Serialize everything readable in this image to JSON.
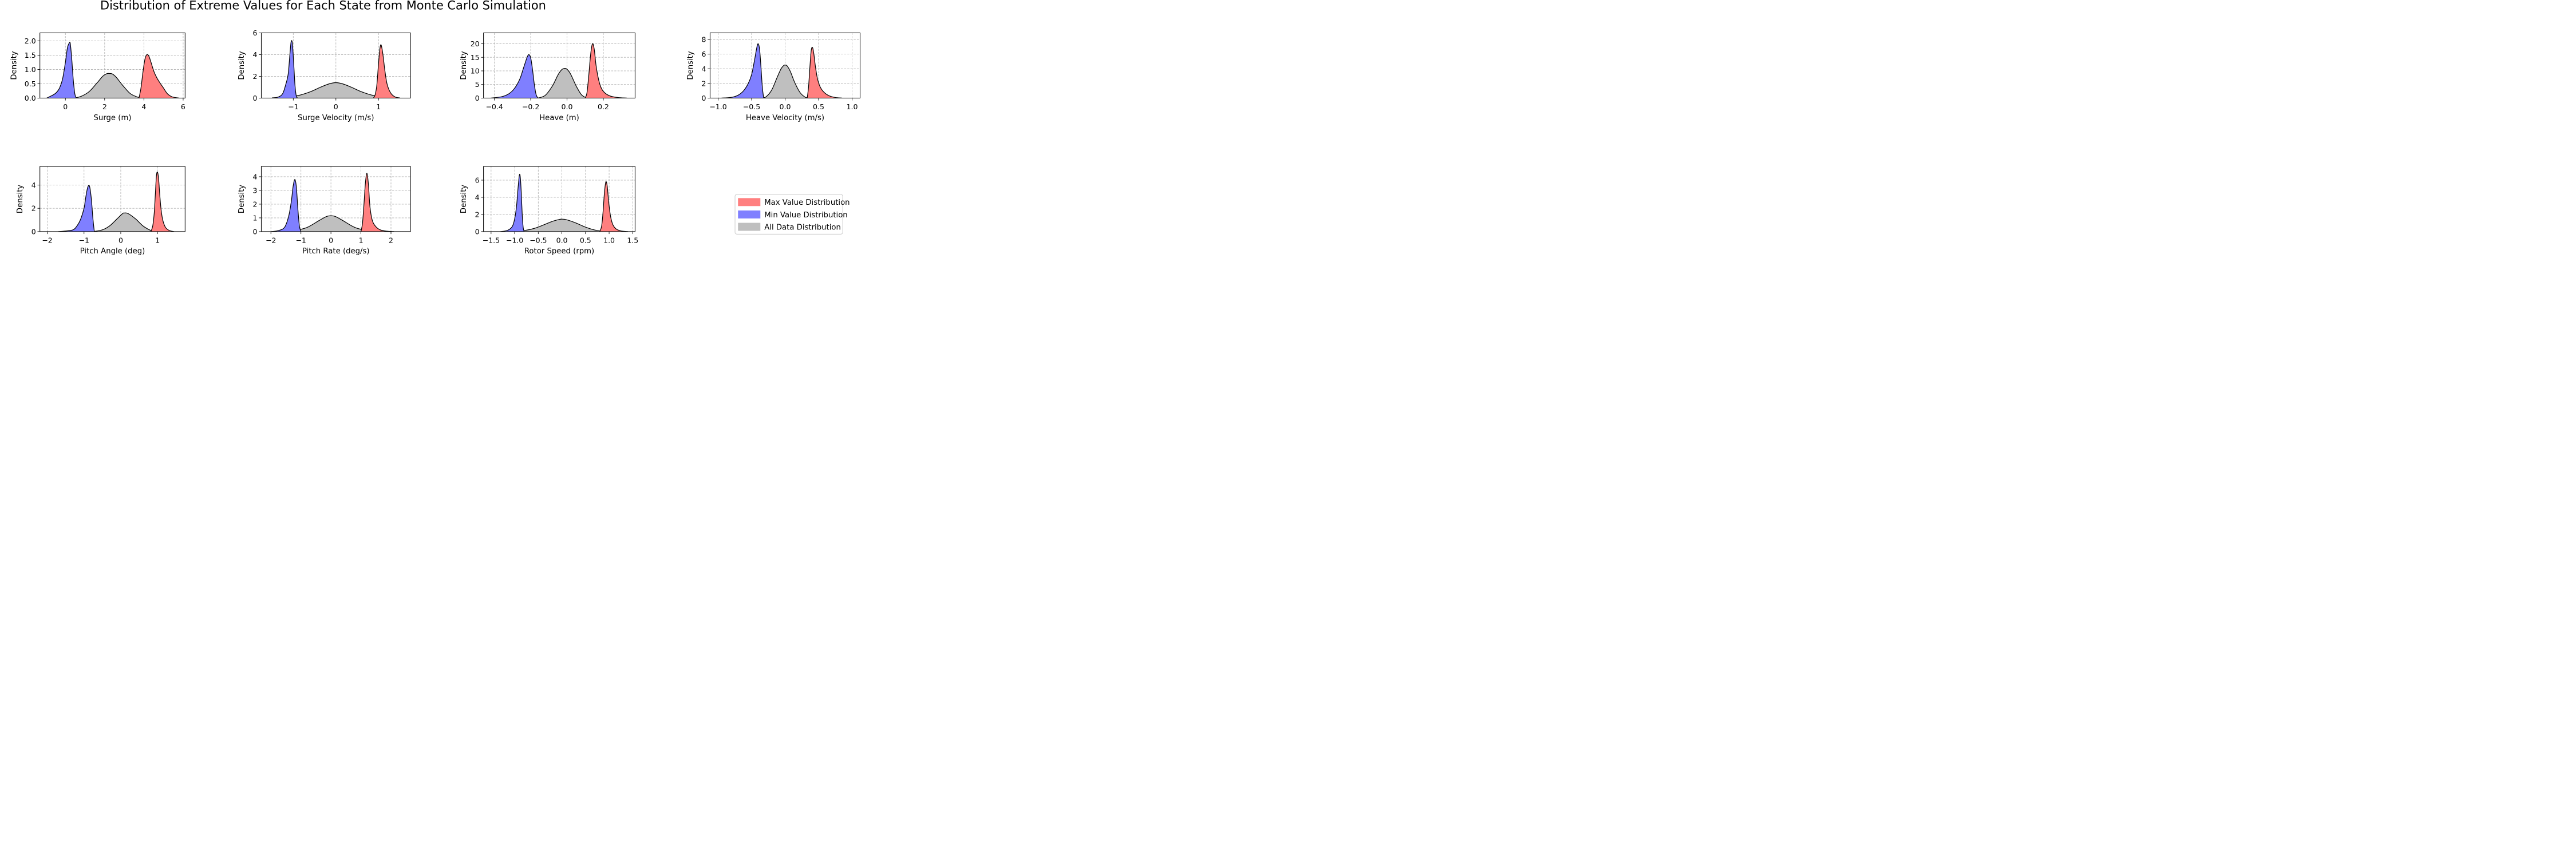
{
  "chart_data": {
    "title": "Distribution of Extreme Values for Each State from Monte Carlo Simulation",
    "legend": {
      "placement": "center-right",
      "entries": [
        {
          "label": "Max Value Distribution",
          "color": "#ff7f7f"
        },
        {
          "label": "Min Value Distribution",
          "color": "#7f7fff"
        },
        {
          "label": "All Data Distribution",
          "color": "#bfbfbf"
        }
      ]
    },
    "colors": {
      "max": "#ff7f7f",
      "min": "#7f7fff",
      "all": "#bfbfbf",
      "kde": "#000000"
    },
    "grid": true,
    "panels": [
      {
        "type": "area",
        "xlabel": "Surge (m)",
        "ylabel": "Density",
        "xlim": [
          -1.3,
          6.1
        ],
        "ylim": [
          0,
          2.28
        ],
        "xticks": [
          0,
          2,
          4,
          6
        ],
        "yticks": [
          0,
          0.5,
          1,
          1.5,
          2
        ],
        "xtick_labels": [
          "0",
          "2",
          "4",
          "6"
        ],
        "ytick_labels": [
          "0.0",
          "0.5",
          "1.0",
          "1.5",
          "2.0"
        ],
        "min_dist": {
          "x": [
            -0.95,
            -0.8,
            -0.6,
            -0.45,
            -0.3,
            -0.15,
            0.0,
            0.1,
            0.2,
            0.25,
            0.32,
            0.4,
            0.48,
            0.55
          ],
          "y": [
            0.0,
            0.05,
            0.12,
            0.2,
            0.35,
            0.65,
            1.25,
            1.75,
            1.93,
            1.9,
            1.4,
            0.65,
            0.15,
            0.0
          ]
        },
        "all_dist": {
          "x": [
            0.45,
            0.8,
            1.2,
            1.6,
            1.9,
            2.1,
            2.25,
            2.4,
            2.6,
            2.9,
            3.3,
            3.7,
            4.0
          ],
          "y": [
            0.0,
            0.06,
            0.22,
            0.52,
            0.76,
            0.85,
            0.86,
            0.84,
            0.72,
            0.46,
            0.16,
            0.03,
            0.0
          ]
        },
        "max_dist": {
          "x": [
            3.75,
            3.85,
            3.95,
            4.05,
            4.15,
            4.25,
            4.35,
            4.5,
            4.65,
            4.8,
            5.0,
            5.2,
            5.45,
            5.8
          ],
          "y": [
            0.0,
            0.35,
            0.9,
            1.35,
            1.52,
            1.47,
            1.28,
            0.95,
            0.72,
            0.55,
            0.35,
            0.15,
            0.04,
            0.0
          ]
        }
      },
      {
        "type": "area",
        "xlabel": "Surge Velocity (m/s)",
        "ylabel": "Density",
        "xlim": [
          -1.75,
          1.75
        ],
        "ylim": [
          0,
          6.0
        ],
        "xticks": [
          -1,
          0,
          1
        ],
        "yticks": [
          0,
          2,
          4,
          6
        ],
        "xtick_labels": [
          "−1",
          "0",
          "1"
        ],
        "ytick_labels": [
          "0",
          "2",
          "4",
          "6"
        ],
        "min_dist": {
          "x": [
            -1.5,
            -1.35,
            -1.25,
            -1.18,
            -1.12,
            -1.08,
            -1.05,
            -1.02,
            -0.99,
            -0.96,
            -0.93,
            -0.9
          ],
          "y": [
            0.0,
            0.1,
            0.4,
            1.2,
            2.2,
            4.0,
            5.2,
            5.0,
            3.2,
            1.2,
            0.2,
            0.0
          ]
        },
        "all_dist": {
          "x": [
            -1.5,
            -1.2,
            -0.9,
            -0.6,
            -0.35,
            -0.15,
            0.0,
            0.15,
            0.35,
            0.6,
            0.9,
            1.2,
            1.5
          ],
          "y": [
            0.02,
            0.08,
            0.22,
            0.58,
            1.02,
            1.32,
            1.42,
            1.32,
            1.02,
            0.58,
            0.22,
            0.08,
            0.02
          ]
        },
        "max_dist": {
          "x": [
            0.88,
            0.92,
            0.96,
            1.0,
            1.03,
            1.06,
            1.1,
            1.15,
            1.2,
            1.28,
            1.38,
            1.5
          ],
          "y": [
            0.0,
            0.3,
            1.2,
            3.2,
            4.5,
            4.9,
            4.1,
            2.5,
            1.3,
            0.5,
            0.12,
            0.0
          ]
        }
      },
      {
        "type": "area",
        "xlabel": "Heave (m)",
        "ylabel": "Density",
        "xlim": [
          -0.46,
          0.375
        ],
        "ylim": [
          0,
          24
        ],
        "xticks": [
          -0.4,
          -0.2,
          0.0,
          0.2
        ],
        "yticks": [
          0,
          5,
          10,
          15,
          20
        ],
        "xtick_labels": [
          "−0.4",
          "−0.2",
          "0.0",
          "0.2"
        ],
        "ytick_labels": [
          "0",
          "5",
          "10",
          "15",
          "20"
        ],
        "min_dist": {
          "x": [
            -0.42,
            -0.36,
            -0.32,
            -0.29,
            -0.26,
            -0.24,
            -0.22,
            -0.21,
            -0.2,
            -0.19,
            -0.18,
            -0.17,
            -0.16
          ],
          "y": [
            0.0,
            0.5,
            1.6,
            3.5,
            7.0,
            11.0,
            15.0,
            16.0,
            14.8,
            10.5,
            5.0,
            1.2,
            0.0
          ]
        },
        "all_dist": {
          "x": [
            -0.16,
            -0.12,
            -0.08,
            -0.05,
            -0.03,
            -0.015,
            0.0,
            0.02,
            0.05,
            0.08,
            0.11
          ],
          "y": [
            0.0,
            1.0,
            4.5,
            8.5,
            10.4,
            10.9,
            10.6,
            8.8,
            4.5,
            1.2,
            0.0
          ]
        },
        "max_dist": {
          "x": [
            0.1,
            0.11,
            0.12,
            0.13,
            0.14,
            0.15,
            0.16,
            0.175,
            0.19,
            0.21,
            0.24,
            0.28,
            0.33
          ],
          "y": [
            0.0,
            2.0,
            8.5,
            16.0,
            20.0,
            18.0,
            12.0,
            6.5,
            3.5,
            1.8,
            0.7,
            0.2,
            0.0
          ]
        }
      },
      {
        "type": "area",
        "xlabel": "Heave Velocity (m/s)",
        "ylabel": "Density",
        "xlim": [
          -1.12,
          1.12
        ],
        "ylim": [
          0,
          8.9
        ],
        "xticks": [
          -1.0,
          -0.5,
          0.0,
          0.5,
          1.0
        ],
        "yticks": [
          0,
          2,
          4,
          6,
          8
        ],
        "xtick_labels": [
          "−1.0",
          "−0.5",
          "0.0",
          "0.5",
          "1.0"
        ],
        "ytick_labels": [
          "0",
          "2",
          "4",
          "6",
          "8"
        ],
        "min_dist": {
          "x": [
            -0.95,
            -0.8,
            -0.7,
            -0.62,
            -0.55,
            -0.5,
            -0.46,
            -0.42,
            -0.4,
            -0.38,
            -0.36,
            -0.34,
            -0.32
          ],
          "y": [
            0.0,
            0.1,
            0.4,
            1.0,
            2.0,
            3.2,
            5.0,
            7.0,
            7.4,
            6.6,
            4.2,
            1.5,
            0.0
          ]
        },
        "all_dist": {
          "x": [
            -0.34,
            -0.28,
            -0.2,
            -0.12,
            -0.06,
            -0.02,
            0.0,
            0.03,
            0.08,
            0.14,
            0.22,
            0.3,
            0.36
          ],
          "y": [
            0.0,
            0.2,
            1.1,
            2.8,
            4.0,
            4.45,
            4.5,
            4.4,
            3.6,
            2.2,
            0.8,
            0.12,
            0.0
          ]
        },
        "max_dist": {
          "x": [
            0.33,
            0.35,
            0.37,
            0.39,
            0.41,
            0.43,
            0.45,
            0.48,
            0.52,
            0.58,
            0.66,
            0.75,
            0.85
          ],
          "y": [
            0.0,
            1.5,
            4.2,
            6.5,
            6.9,
            6.0,
            4.5,
            2.8,
            1.6,
            0.8,
            0.3,
            0.08,
            0.0
          ]
        }
      },
      {
        "type": "area",
        "xlabel": "Pitch Angle (deg)",
        "ylabel": "Density",
        "xlim": [
          -2.2,
          1.75
        ],
        "ylim": [
          0,
          5.6
        ],
        "xticks": [
          -2,
          -1,
          0,
          1
        ],
        "yticks": [
          0,
          2,
          4
        ],
        "xtick_labels": [
          "−2",
          "−1",
          "0",
          "1"
        ],
        "ytick_labels": [
          "0",
          "2",
          "4"
        ],
        "min_dist": {
          "x": [
            -1.7,
            -1.5,
            -1.3,
            -1.2,
            -1.1,
            -1.0,
            -0.95,
            -0.9,
            -0.85,
            -0.8,
            -0.76,
            -0.72
          ],
          "y": [
            0.0,
            0.05,
            0.15,
            0.45,
            1.0,
            2.0,
            3.0,
            3.8,
            3.9,
            2.8,
            1.2,
            0.0
          ]
        },
        "all_dist": {
          "x": [
            -0.75,
            -0.5,
            -0.3,
            -0.1,
            0.05,
            0.1,
            0.2,
            0.4,
            0.6,
            0.8,
            0.95
          ],
          "y": [
            0.0,
            0.15,
            0.5,
            1.1,
            1.55,
            1.6,
            1.55,
            1.1,
            0.5,
            0.12,
            0.0
          ]
        },
        "max_dist": {
          "x": [
            0.82,
            0.87,
            0.91,
            0.94,
            0.97,
            1.0,
            1.03,
            1.06,
            1.1,
            1.15,
            1.22,
            1.32,
            1.45
          ],
          "y": [
            0.0,
            0.5,
            1.6,
            3.2,
            4.8,
            5.1,
            4.5,
            3.2,
            1.8,
            0.9,
            0.35,
            0.1,
            0.0
          ]
        }
      },
      {
        "type": "area",
        "xlabel": "Pitch Rate (deg/s)",
        "ylabel": "Density",
        "xlim": [
          -2.32,
          2.65
        ],
        "ylim": [
          0,
          4.75
        ],
        "xticks": [
          -2,
          -1,
          0,
          1,
          2
        ],
        "yticks": [
          0,
          1,
          2,
          3,
          4
        ],
        "xtick_labels": [
          "−2",
          "−1",
          "0",
          "1",
          "2"
        ],
        "ytick_labels": [
          "0",
          "1",
          "2",
          "3",
          "4"
        ],
        "min_dist": {
          "x": [
            -2.0,
            -1.8,
            -1.6,
            -1.5,
            -1.4,
            -1.32,
            -1.26,
            -1.2,
            -1.15,
            -1.1,
            -1.05,
            -1.0
          ],
          "y": [
            0.0,
            0.05,
            0.2,
            0.5,
            1.2,
            2.2,
            3.3,
            3.8,
            3.2,
            1.6,
            0.4,
            0.0
          ]
        },
        "all_dist": {
          "x": [
            -1.6,
            -1.2,
            -0.8,
            -0.4,
            -0.15,
            0.0,
            0.15,
            0.4,
            0.8,
            1.2,
            1.6
          ],
          "y": [
            0.0,
            0.08,
            0.3,
            0.8,
            1.1,
            1.15,
            1.1,
            0.8,
            0.3,
            0.08,
            0.0
          ]
        },
        "max_dist": {
          "x": [
            1.0,
            1.05,
            1.1,
            1.15,
            1.2,
            1.25,
            1.3,
            1.38,
            1.5,
            1.65,
            1.85,
            2.1
          ],
          "y": [
            0.0,
            0.6,
            2.0,
            3.6,
            4.25,
            3.4,
            1.8,
            0.8,
            0.35,
            0.12,
            0.03,
            0.0
          ]
        }
      },
      {
        "type": "area",
        "xlabel": "Rotor Speed (rpm)",
        "ylabel": "Density",
        "xlim": [
          -1.66,
          1.55
        ],
        "ylim": [
          0,
          7.6
        ],
        "xticks": [
          -1.5,
          -1.0,
          -0.5,
          0.0,
          0.5,
          1.0,
          1.5
        ],
        "yticks": [
          0,
          2,
          4,
          6
        ],
        "xtick_labels": [
          "−1.5",
          "−1.0",
          "−0.5",
          "0.0",
          "0.5",
          "1.0",
          "1.5"
        ],
        "ytick_labels": [
          "0",
          "2",
          "4",
          "6"
        ],
        "min_dist": {
          "x": [
            -1.3,
            -1.15,
            -1.05,
            -1.0,
            -0.96,
            -0.93,
            -0.9,
            -0.88,
            -0.86,
            -0.84,
            -0.82,
            -0.8
          ],
          "y": [
            0.0,
            0.15,
            0.6,
            1.5,
            3.0,
            5.0,
            6.6,
            6.3,
            4.5,
            2.0,
            0.5,
            0.0
          ]
        },
        "all_dist": {
          "x": [
            -1.0,
            -0.8,
            -0.6,
            -0.4,
            -0.2,
            -0.05,
            0.0,
            0.1,
            0.3,
            0.5,
            0.7,
            0.9
          ],
          "y": [
            0.0,
            0.12,
            0.35,
            0.75,
            1.2,
            1.42,
            1.45,
            1.38,
            1.0,
            0.52,
            0.18,
            0.02
          ]
        },
        "max_dist": {
          "x": [
            0.8,
            0.84,
            0.87,
            0.9,
            0.93,
            0.96,
            0.99,
            1.03,
            1.08,
            1.15,
            1.25,
            1.4
          ],
          "y": [
            0.0,
            0.6,
            2.2,
            4.5,
            5.8,
            5.3,
            3.5,
            1.8,
            0.8,
            0.3,
            0.08,
            0.0
          ]
        }
      }
    ]
  }
}
